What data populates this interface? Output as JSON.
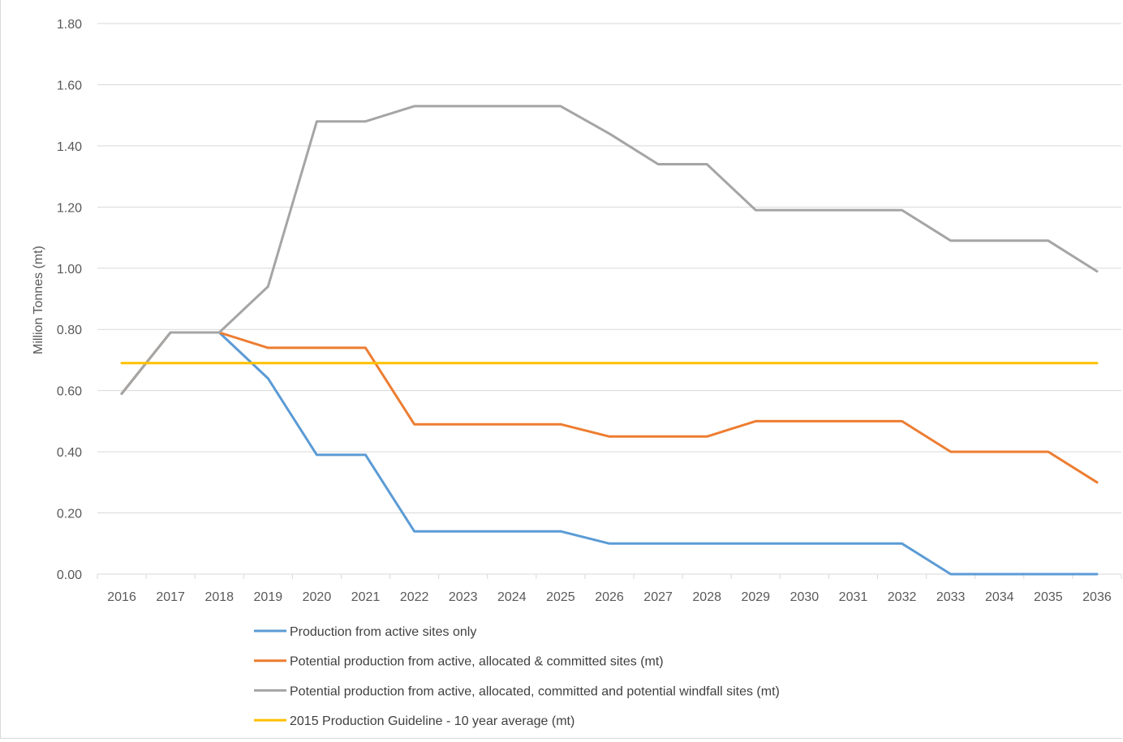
{
  "chart_data": {
    "type": "line",
    "title": "",
    "xlabel": "",
    "ylabel": "Million Tonnes (mt)",
    "ylim": [
      0,
      1.8
    ],
    "yticks": [
      "0.00",
      "0.20",
      "0.40",
      "0.60",
      "0.80",
      "1.00",
      "1.20",
      "1.40",
      "1.60",
      "1.80"
    ],
    "categories": [
      "2016",
      "2017",
      "2018",
      "2019",
      "2020",
      "2021",
      "2022",
      "2023",
      "2024",
      "2025",
      "2026",
      "2027",
      "2028",
      "2029",
      "2030",
      "2031",
      "2032",
      "2033",
      "2034",
      "2035",
      "2036"
    ],
    "grid": "horizontal",
    "legend_position": "bottom",
    "series": [
      {
        "name": "Production from active sites only",
        "color": "#5b9bd5",
        "values": [
          0.59,
          0.79,
          0.79,
          0.64,
          0.39,
          0.39,
          0.14,
          0.14,
          0.14,
          0.14,
          0.1,
          0.1,
          0.1,
          0.1,
          0.1,
          0.1,
          0.1,
          0.0,
          0.0,
          0.0,
          0.0
        ]
      },
      {
        "name": "Potential production from active, allocated & committed sites (mt)",
        "color": "#ed7d31",
        "values": [
          0.59,
          0.79,
          0.79,
          0.74,
          0.74,
          0.74,
          0.49,
          0.49,
          0.49,
          0.49,
          0.45,
          0.45,
          0.45,
          0.5,
          0.5,
          0.5,
          0.5,
          0.4,
          0.4,
          0.4,
          0.3
        ]
      },
      {
        "name": "Potential production from active, allocated, committed and potential windfall sites (mt)",
        "color": "#a5a5a5",
        "values": [
          0.59,
          0.79,
          0.79,
          0.94,
          1.48,
          1.48,
          1.53,
          1.53,
          1.53,
          1.53,
          1.44,
          1.34,
          1.34,
          1.19,
          1.19,
          1.19,
          1.19,
          1.09,
          1.09,
          1.09,
          0.99
        ]
      },
      {
        "name": "2015 Production Guideline - 10 year average (mt)",
        "color": "#ffc000",
        "values": [
          0.69,
          0.69,
          0.69,
          0.69,
          0.69,
          0.69,
          0.69,
          0.69,
          0.69,
          0.69,
          0.69,
          0.69,
          0.69,
          0.69,
          0.69,
          0.69,
          0.69,
          0.69,
          0.69,
          0.69,
          0.69
        ]
      }
    ]
  }
}
